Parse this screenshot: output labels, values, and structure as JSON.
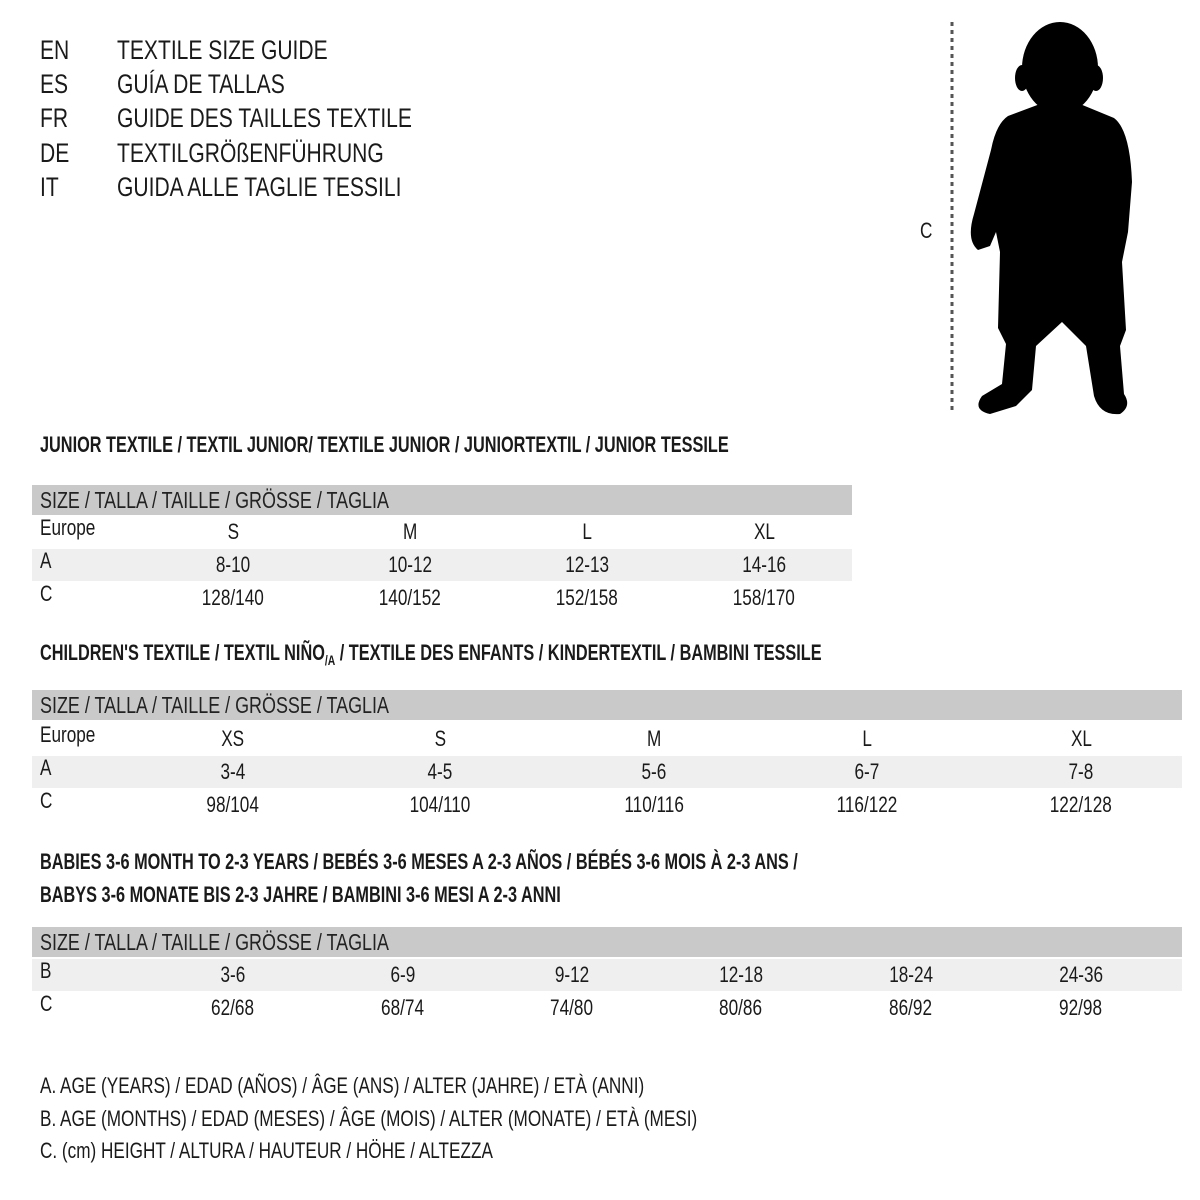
{
  "languages": [
    {
      "code": "EN",
      "title": "TEXTILE SIZE GUIDE"
    },
    {
      "code": "ES",
      "title": "GUÍA DE TALLAS"
    },
    {
      "code": "FR",
      "title": "GUIDE DES TAILLES TEXTILE"
    },
    {
      "code": "DE",
      "title": "TEXTILGRÖßENFÜHRUNG"
    },
    {
      "code": "IT",
      "title": "GUIDA ALLE TAGLIE TESSILI"
    }
  ],
  "figure": {
    "measure_label": "C",
    "icon": "child-silhouette-icon"
  },
  "colors": {
    "header_bar": "#c9c9c9",
    "shaded_row": "#efefef",
    "text": "#1a1a1a"
  },
  "junior": {
    "heading": "JUNIOR TEXTILE / TEXTIL JUNIOR/ TEXTILE JUNIOR / JUNIORTEXTIL / JUNIOR TESSILE",
    "size_header": "SIZE / TALLA / TAILLE / GRÖSSE / TAGLIA",
    "rows": [
      {
        "label": "Europe",
        "values": [
          "S",
          "M",
          "L",
          "XL"
        ]
      },
      {
        "label": "A",
        "values": [
          "8-10",
          "10-12",
          "12-13",
          "14-16"
        ]
      },
      {
        "label": "C",
        "values": [
          "128/140",
          "140/152",
          "152/158",
          "158/170"
        ]
      }
    ]
  },
  "children": {
    "heading": "CHILDREN'S TEXTILE / TEXTIL NIÑO",
    "heading_sub": "/A",
    "heading_rest": " / TEXTILE DES ENFANTS / KINDERTEXTIL / BAMBINI TESSILE",
    "size_header": "SIZE / TALLA / TAILLE / GRÖSSE / TAGLIA",
    "rows": [
      {
        "label": "Europe",
        "values": [
          "XS",
          "S",
          "M",
          "L",
          "XL"
        ]
      },
      {
        "label": "A",
        "values": [
          "3-4",
          "4-5",
          "5-6",
          "6-7",
          "7-8"
        ]
      },
      {
        "label": "C",
        "values": [
          "98/104",
          "104/110",
          "110/116",
          "116/122",
          "122/128"
        ]
      }
    ]
  },
  "babies": {
    "heading_line1": "BABIES 3-6 MONTH TO 2-3 YEARS / BEBÉS 3-6 MESES A 2-3 AÑOS / BÉBÉS 3-6 MOIS À 2-3 ANS /",
    "heading_line2": "BABYS 3-6 MONATE BIS 2-3 JAHRE / BAMBINI 3-6 MESI A 2-3 ANNI",
    "size_header": "SIZE / TALLA / TAILLE / GRÖSSE / TAGLIA",
    "rows": [
      {
        "label": "B",
        "values": [
          "3-6",
          "6-9",
          "9-12",
          "12-18",
          "18-24",
          "24-36"
        ]
      },
      {
        "label": "C",
        "values": [
          "62/68",
          "68/74",
          "74/80",
          "80/86",
          "86/92",
          "92/98"
        ]
      }
    ]
  },
  "legend": [
    "A. AGE (YEARS) / EDAD (AÑOS) / ÂGE (ANS) / ALTER (JAHRE) / ETÀ (ANNI)",
    "B. AGE (MONTHS) / EDAD (MESES) / ÂGE (MOIS) / ALTER (MONATE) / ETÀ (MESI)",
    "C. (cm) HEIGHT / ALTURA / HAUTEUR / HÖHE / ALTEZZA"
  ]
}
